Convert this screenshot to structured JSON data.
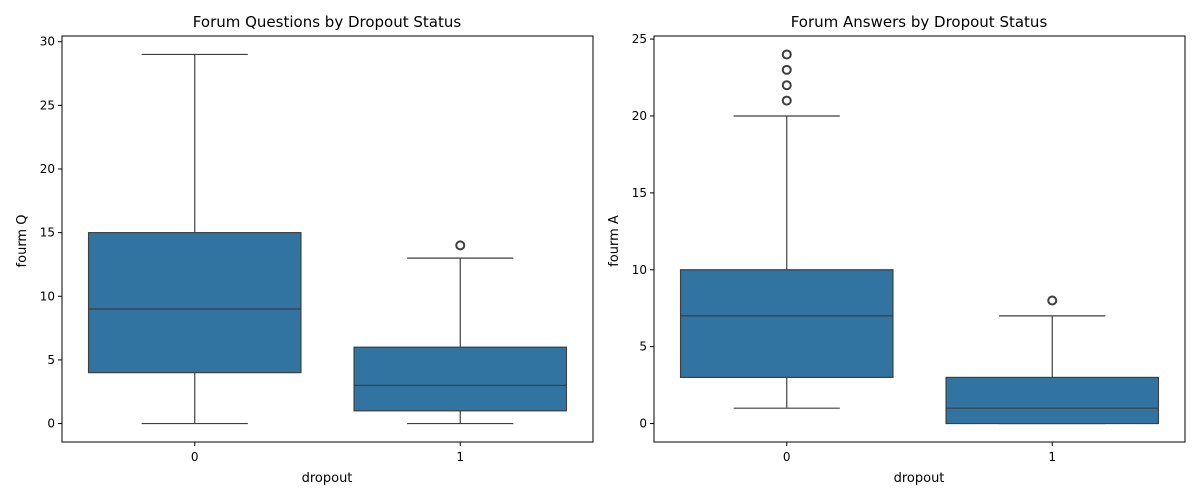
{
  "chart_data": [
    {
      "type": "box",
      "title": "Forum Questions by Dropout Status",
      "xlabel": "dropout",
      "ylabel": "fourm Q",
      "categories": [
        "0",
        "1"
      ],
      "ylim": [
        -1.45,
        30.45
      ],
      "yticks": [
        0,
        5,
        10,
        15,
        20,
        25,
        30
      ],
      "box_color": "#3274a1",
      "line_color": "#3f3f3f",
      "boxes": [
        {
          "category": "0",
          "whisker_low": 0,
          "q1": 4,
          "median": 9,
          "q3": 15,
          "whisker_high": 29,
          "outliers": []
        },
        {
          "category": "1",
          "whisker_low": 0,
          "q1": 1,
          "median": 3,
          "q3": 6,
          "whisker_high": 13,
          "outliers": [
            14
          ]
        }
      ]
    },
    {
      "type": "box",
      "title": "Forum Answers by Dropout Status",
      "xlabel": "dropout",
      "ylabel": "fourm A",
      "categories": [
        "0",
        "1"
      ],
      "ylim": [
        -1.2,
        25.2
      ],
      "yticks": [
        0,
        5,
        10,
        15,
        20,
        25
      ],
      "box_color": "#3274a1",
      "line_color": "#3f3f3f",
      "boxes": [
        {
          "category": "0",
          "whisker_low": 1,
          "q1": 3,
          "median": 7,
          "q3": 10,
          "whisker_high": 20,
          "outliers": [
            21,
            22,
            23,
            24
          ]
        },
        {
          "category": "1",
          "whisker_low": 0,
          "q1": 0,
          "median": 1,
          "q3": 3,
          "whisker_high": 7,
          "outliers": [
            8
          ]
        }
      ]
    }
  ]
}
